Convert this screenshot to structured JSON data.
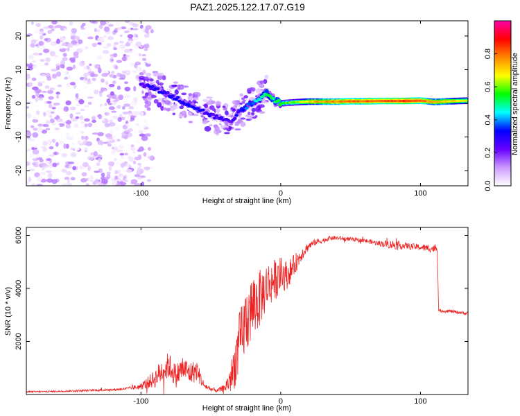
{
  "title": "PAZ1.2025.122.17.07.G19",
  "chart_data": [
    {
      "type": "heatmap",
      "xlabel": "Height of straight line (km)",
      "ylabel": "Frequency (Hz)",
      "xlim": [
        -182,
        134
      ],
      "ylim": [
        -24.5,
        24.5
      ],
      "xticks": [
        -100,
        0,
        100
      ],
      "yticks": [
        -20,
        -10,
        0,
        10,
        20
      ],
      "colorbar": {
        "label": "Normalized spectral amplitude",
        "range": [
          0.0,
          1.0
        ],
        "ticks": [
          0.0,
          0.2,
          0.4,
          0.6,
          0.8
        ],
        "colors": [
          "#ffffff",
          "#cc99ff",
          "#6600ff",
          "#0000ff",
          "#00ffff",
          "#00ff00",
          "#ffff00",
          "#ff8800",
          "#ff0000",
          "#ff00aa"
        ]
      },
      "ridge": {
        "x": [
          -100,
          -90,
          -80,
          -70,
          -60,
          -50,
          -40,
          -35,
          -30,
          -25,
          -20,
          -15,
          -10,
          -5,
          0,
          10,
          20,
          30,
          40,
          50,
          60,
          70,
          80,
          90,
          100,
          110,
          120,
          134
        ],
        "frequency": [
          5.5,
          4.5,
          2.5,
          0.5,
          -1.5,
          -3.5,
          -5.0,
          -6.0,
          -2.5,
          -1.0,
          0.0,
          1.5,
          3.0,
          1.0,
          0.0,
          0.3,
          0.5,
          0.5,
          0.5,
          0.6,
          0.6,
          0.7,
          0.7,
          0.7,
          0.8,
          0.4,
          0.6,
          0.8
        ],
        "amplitude": [
          0.25,
          0.3,
          0.3,
          0.3,
          0.3,
          0.25,
          0.25,
          0.25,
          0.3,
          0.35,
          0.4,
          0.45,
          0.5,
          0.5,
          0.55,
          0.6,
          0.7,
          0.75,
          0.78,
          0.8,
          0.8,
          0.82,
          0.82,
          0.85,
          0.8,
          0.75,
          0.7,
          0.65
        ]
      },
      "noise_region": {
        "x_from": -182,
        "x_to": -100,
        "amplitude_max": 0.15
      }
    },
    {
      "type": "line",
      "xlabel": "Height of straight line (km)",
      "ylabel": "SNR (10 * v/v)",
      "xlim": [
        -182,
        134
      ],
      "ylim": [
        0,
        6300
      ],
      "xticks": [
        -100,
        0,
        100
      ],
      "yticks": [
        2000,
        4000,
        6000
      ],
      "color": "#ee2222",
      "x": [
        -182,
        -160,
        -140,
        -120,
        -110,
        -100,
        -90,
        -85,
        -80,
        -75,
        -70,
        -65,
        -60,
        -55,
        -50,
        -45,
        -40,
        -35,
        -30,
        -25,
        -20,
        -15,
        -10,
        -5,
        0,
        5,
        10,
        15,
        20,
        25,
        30,
        35,
        40,
        50,
        60,
        70,
        80,
        90,
        100,
        108,
        112,
        113,
        120,
        134
      ],
      "y": [
        100,
        120,
        150,
        180,
        220,
        300,
        600,
        900,
        1100,
        700,
        1000,
        800,
        900,
        350,
        200,
        150,
        250,
        700,
        1800,
        2800,
        3300,
        3600,
        4100,
        4300,
        4500,
        4500,
        4900,
        5300,
        5600,
        5750,
        5800,
        5900,
        5900,
        5850,
        5800,
        5700,
        5650,
        5600,
        5550,
        5500,
        5500,
        3150,
        3150,
        3050
      ],
      "noise_amplitude": [
        30,
        30,
        40,
        40,
        50,
        120,
        350,
        500,
        500,
        450,
        500,
        450,
        400,
        150,
        80,
        80,
        150,
        700,
        1200,
        1300,
        1300,
        1100,
        900,
        800,
        700,
        500,
        400,
        250,
        150,
        120,
        100,
        80,
        80,
        80,
        80,
        100,
        180,
        120,
        120,
        150,
        150,
        60,
        60,
        60
      ]
    }
  ]
}
